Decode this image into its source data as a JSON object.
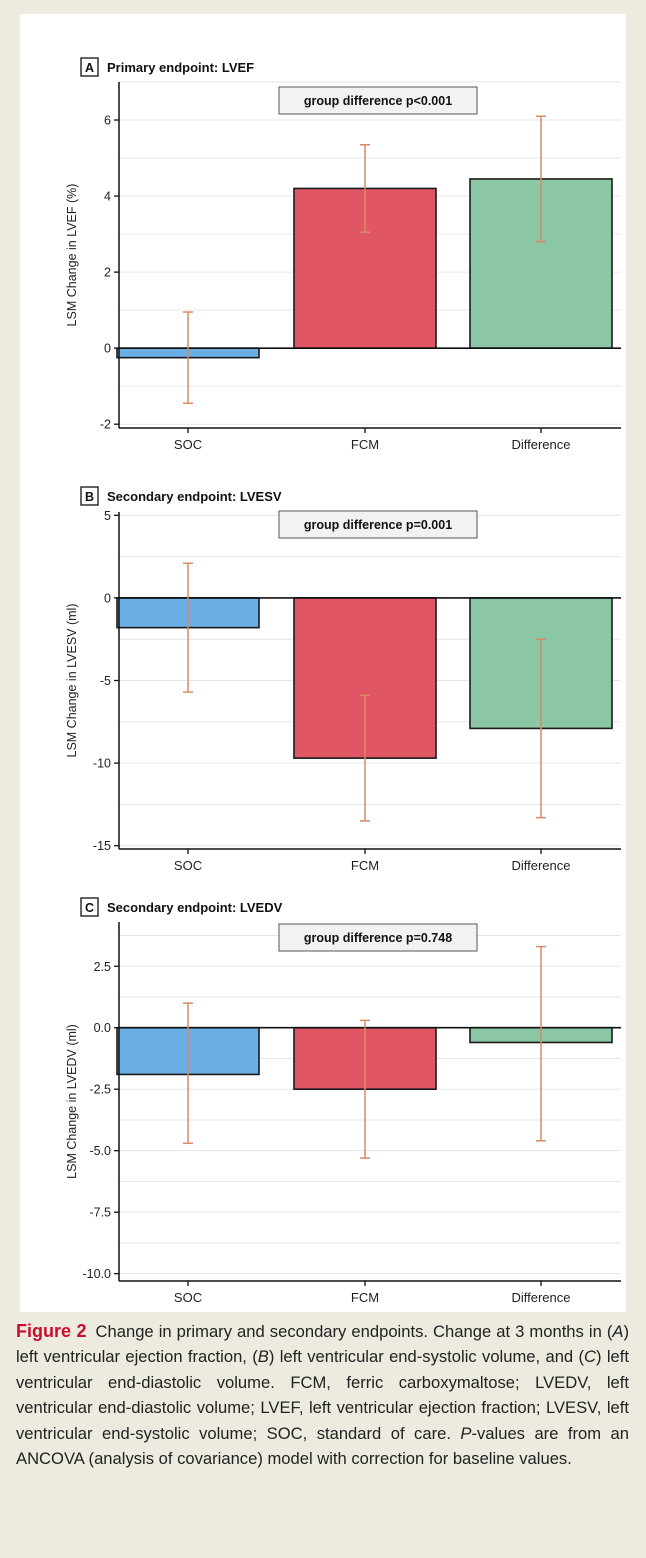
{
  "chart_data": [
    {
      "type": "bar",
      "panel_letter": "A",
      "title": "Primary endpoint: LVEF",
      "ylabel": "LSM Change in LVEF (%)",
      "xlabel": "",
      "categories": [
        "SOC",
        "FCM",
        "Difference"
      ],
      "values": [
        -0.25,
        4.2,
        4.45
      ],
      "error_low": [
        -1.45,
        3.05,
        2.8
      ],
      "error_high": [
        0.95,
        5.35,
        6.1
      ],
      "colors": [
        "#6aaee6",
        "#e05664",
        "#8cc7a5"
      ],
      "error_color": "#d98a64",
      "ylim": [
        -2.1,
        7.0
      ],
      "yticks": [
        -2,
        0,
        2,
        4,
        6
      ],
      "ytick_labels": [
        "-2",
        "0",
        "2",
        "4",
        "6"
      ],
      "minor_grid_step": 1,
      "grid": true,
      "annotation": "group difference p<0.001"
    },
    {
      "type": "bar",
      "panel_letter": "B",
      "title": "Secondary endpoint: LVESV",
      "ylabel": "LSM Change in LVESV (ml)",
      "xlabel": "",
      "categories": [
        "SOC",
        "FCM",
        "Difference"
      ],
      "values": [
        -1.8,
        -9.7,
        -7.9
      ],
      "error_low": [
        -5.7,
        -13.5,
        -13.3
      ],
      "error_high": [
        2.1,
        -5.9,
        -2.5
      ],
      "colors": [
        "#6aaee6",
        "#e05664",
        "#8cc7a5"
      ],
      "error_color": "#d98a64",
      "ylim": [
        -15.2,
        5.2
      ],
      "yticks": [
        -15,
        -10,
        -5,
        0,
        5
      ],
      "ytick_labels": [
        "-15",
        "-10",
        "-5",
        "0",
        "5"
      ],
      "minor_grid_step": 2.5,
      "grid": true,
      "annotation": "group difference p=0.001"
    },
    {
      "type": "bar",
      "panel_letter": "C",
      "title": "Secondary endpoint: LVEDV",
      "ylabel": "LSM Change in LVEDV (ml)",
      "xlabel": "",
      "categories": [
        "SOC",
        "FCM",
        "Difference"
      ],
      "values": [
        -1.9,
        -2.5,
        -0.6
      ],
      "error_low": [
        -4.7,
        -5.3,
        -4.6
      ],
      "error_high": [
        1.0,
        0.3,
        3.3
      ],
      "colors": [
        "#6aaee6",
        "#e05664",
        "#8cc7a5"
      ],
      "error_color": "#d98a64",
      "ylim": [
        -10.3,
        4.3
      ],
      "yticks": [
        -10,
        -7.5,
        -5,
        -2.5,
        0,
        2.5
      ],
      "ytick_labels": [
        "-10.0",
        "-7.5",
        "-5.0",
        "-2.5",
        "0.0",
        "2.5"
      ],
      "minor_grid_step": 1.25,
      "grid": true,
      "annotation": "group difference p=0.748"
    }
  ],
  "caption": {
    "label": "Figure 2",
    "parts": [
      {
        "t": " Change in primary and secondary endpoints. Change at 3 months in (",
        "i": false
      },
      {
        "t": "A",
        "i": true
      },
      {
        "t": ") left ventricular ejection fraction, (",
        "i": false
      },
      {
        "t": "B",
        "i": true
      },
      {
        "t": ") left ventricular end-systolic volume, and (",
        "i": false
      },
      {
        "t": "C",
        "i": true
      },
      {
        "t": ") left ventricular end-diastolic volume. FCM, ferric carboxymaltose; LVEDV, left ventricular end-diastolic volume; LVEF, left ventricular ejection fraction; LVESV, left ventricular end-systolic volume; SOC, standard of care. ",
        "i": false
      },
      {
        "t": "P",
        "i": true
      },
      {
        "t": "-values are from an ANCOVA (analysis of covariance) model with correction for baseline values.",
        "i": false
      }
    ]
  }
}
